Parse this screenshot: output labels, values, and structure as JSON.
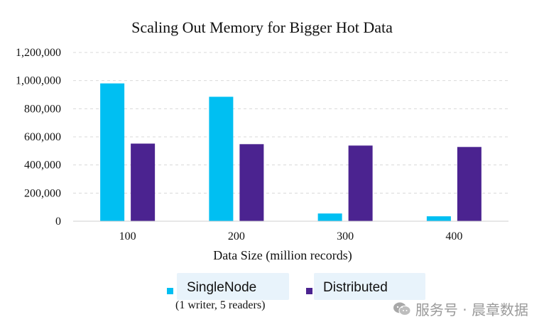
{
  "chart_data": {
    "type": "bar",
    "title": "Scaling Out Memory for Bigger Hot Data",
    "xlabel": "Data Size (million records)",
    "ylabel": "",
    "categories": [
      "100",
      "200",
      "300",
      "400"
    ],
    "series": [
      {
        "name": "SingleNode",
        "values": [
          980000,
          885000,
          55000,
          35000
        ],
        "color": "#00bff2"
      },
      {
        "name": "Distributed",
        "values": [
          552000,
          548000,
          538000,
          528000
        ],
        "color": "#4b2390"
      }
    ],
    "ylim": [
      0,
      1200000
    ],
    "yticks": [
      0,
      200000,
      400000,
      600000,
      800000,
      1000000,
      1200000
    ],
    "ytick_labels": [
      "0",
      "200,000",
      "400,000",
      "600,000",
      "800,000",
      "1,000,000",
      "1,200,000"
    ],
    "grid": true,
    "legend_position": "bottom"
  },
  "legend": {
    "single_label": "SingleNode",
    "single_sub": "(1 writer, 5 readers)",
    "distributed_label": "Distributed",
    "single_color": "#00bff2",
    "distributed_color": "#4b2390"
  },
  "watermark": {
    "text": "服务号 · 晨章数据",
    "icon": "wechat-icon"
  }
}
